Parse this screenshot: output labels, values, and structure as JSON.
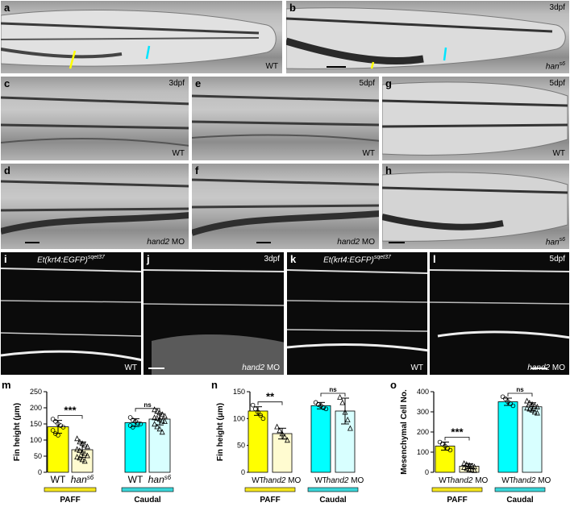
{
  "panels": {
    "a": {
      "label": "a",
      "caption": "WT"
    },
    "b": {
      "label": "b",
      "stage": "3dpf",
      "caption": "han",
      "caption_sup": "s6"
    },
    "c": {
      "label": "c",
      "stage": "3dpf",
      "caption": "WT"
    },
    "d": {
      "label": "d",
      "caption_italic": "hand2",
      "caption": " MO"
    },
    "e": {
      "label": "e",
      "stage": "5dpf",
      "caption": "WT"
    },
    "f": {
      "label": "f",
      "caption_italic": "hand2",
      "caption": " MO"
    },
    "g": {
      "label": "g",
      "stage": "5dpf",
      "caption": "WT"
    },
    "h": {
      "label": "h",
      "caption": "han",
      "caption_sup": "s6"
    },
    "i": {
      "label": "i",
      "transgene": "Et(krt4:EGFP)",
      "transgene_sup": "sqet37",
      "caption": "WT"
    },
    "j": {
      "label": "j",
      "stage": "3dpf",
      "caption_italic": "hand2",
      "caption": " MO"
    },
    "k": {
      "label": "k",
      "transgene": "Et(krt4:EGFP)",
      "transgene_sup": "sqet37",
      "caption": "WT"
    },
    "l": {
      "label": "l",
      "stage": "5dpf",
      "caption_italic": "hand2",
      "caption": " MO"
    }
  },
  "chart_data": [
    {
      "id": "m",
      "type": "bar",
      "ylabel": "Fin height (μm)",
      "ylim": [
        0,
        250
      ],
      "yticks": [
        0,
        50,
        100,
        150,
        200,
        250
      ],
      "categories": [
        "WT",
        "han s6",
        "WT",
        "han s6"
      ],
      "groups": [
        {
          "name": "PAFF",
          "color": "#f4e51c"
        },
        {
          "name": "Caudal",
          "color": "#39d5d8"
        }
      ],
      "values": [
        141,
        70,
        154,
        165
      ],
      "errors": [
        20,
        24,
        12,
        18
      ],
      "colors": [
        "#ffff00",
        "#fffbd0",
        "#00ffff",
        "#d8ffff"
      ],
      "significance": [
        {
          "pair": [
            0,
            1
          ],
          "label": "***"
        },
        {
          "pair": [
            2,
            3
          ],
          "label": "ns"
        }
      ],
      "points": [
        [
          165,
          158,
          150,
          145,
          140,
          130,
          120,
          115
        ],
        [
          105,
          95,
          90,
          85,
          80,
          72,
          68,
          63,
          58,
          52,
          48,
          45,
          40,
          35
        ],
        [
          170,
          162,
          158,
          152,
          150,
          145,
          140
        ],
        [
          195,
          190,
          185,
          180,
          175,
          170,
          168,
          165,
          160,
          158,
          150,
          142,
          135,
          125
        ]
      ]
    },
    {
      "id": "n",
      "type": "bar",
      "ylabel": "Fin height (μm)",
      "ylim": [
        0,
        150
      ],
      "yticks": [
        0,
        50,
        100,
        150
      ],
      "categories": [
        "WT",
        "hand2 MO",
        "WT",
        "hand2 MO"
      ],
      "groups": [
        {
          "name": "PAFF",
          "color": "#f4e51c"
        },
        {
          "name": "Caudal",
          "color": "#39d5d8"
        }
      ],
      "values": [
        114,
        72,
        124,
        114
      ],
      "errors": [
        8,
        10,
        6,
        24
      ],
      "colors": [
        "#ffff00",
        "#fffbd0",
        "#00ffff",
        "#d8ffff"
      ],
      "significance": [
        {
          "pair": [
            0,
            1
          ],
          "label": "**"
        },
        {
          "pair": [
            2,
            3
          ],
          "label": "ns"
        }
      ],
      "points": [
        [
          125,
          118,
          112,
          106,
          100
        ],
        [
          85,
          78,
          72,
          66,
          60
        ],
        [
          130,
          126,
          124,
          120,
          118
        ],
        [
          140,
          130,
          112,
          98,
          82
        ]
      ]
    },
    {
      "id": "o",
      "type": "bar",
      "ylabel": "Mesenchymal Cell No.",
      "ylim": [
        0,
        400
      ],
      "yticks": [
        0,
        100,
        200,
        300,
        400
      ],
      "categories": [
        "WT",
        "hand2 MO",
        "WT",
        "hand2 MO"
      ],
      "groups": [
        {
          "name": "PAFF",
          "color": "#f4e51c"
        },
        {
          "name": "Caudal",
          "color": "#39d5d8"
        }
      ],
      "values": [
        130,
        30,
        350,
        325
      ],
      "errors": [
        20,
        12,
        18,
        20
      ],
      "colors": [
        "#ffff00",
        "#fffbd0",
        "#00ffff",
        "#d8ffff"
      ],
      "significance": [
        {
          "pair": [
            0,
            1
          ],
          "label": "***"
        },
        {
          "pair": [
            2,
            3
          ],
          "label": "ns"
        }
      ],
      "points": [
        [
          150,
          140,
          130,
          118,
          110
        ],
        [
          45,
          40,
          36,
          32,
          28,
          25,
          20,
          15,
          12,
          10
        ],
        [
          375,
          365,
          350,
          340,
          330
        ],
        [
          355,
          345,
          338,
          330,
          325,
          320,
          315,
          310,
          300,
          295
        ]
      ]
    }
  ]
}
